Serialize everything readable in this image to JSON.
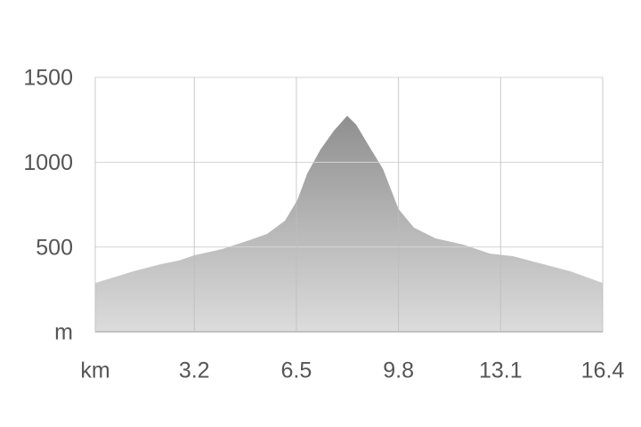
{
  "chart_data": {
    "type": "area",
    "x": [
      0,
      1.24,
      2.1,
      2.7,
      3.2,
      4.1,
      4.98,
      5.55,
      6.13,
      6.53,
      6.85,
      7.28,
      7.71,
      8.14,
      8.43,
      8.86,
      9.3,
      9.8,
      10.3,
      11.0,
      11.9,
      12.76,
      13.5,
      14.5,
      15.35,
      16.4
    ],
    "y": [
      288,
      357,
      398,
      420,
      451,
      488,
      540,
      577,
      655,
      776,
      933,
      1075,
      1185,
      1274,
      1222,
      1091,
      960,
      724,
      614,
      551,
      514,
      461,
      446,
      398,
      357,
      288
    ],
    "xlim": [
      0,
      16.4
    ],
    "xticks": [
      {
        "value": 0,
        "label": "km"
      },
      3.2,
      6.5,
      9.8,
      13.1,
      16.4
    ],
    "ylim": [
      0,
      1500
    ],
    "yticks": [
      {
        "value": 0,
        "label": "m"
      },
      500,
      1000,
      1500
    ],
    "grid": true,
    "color": "#a0a0a0"
  }
}
